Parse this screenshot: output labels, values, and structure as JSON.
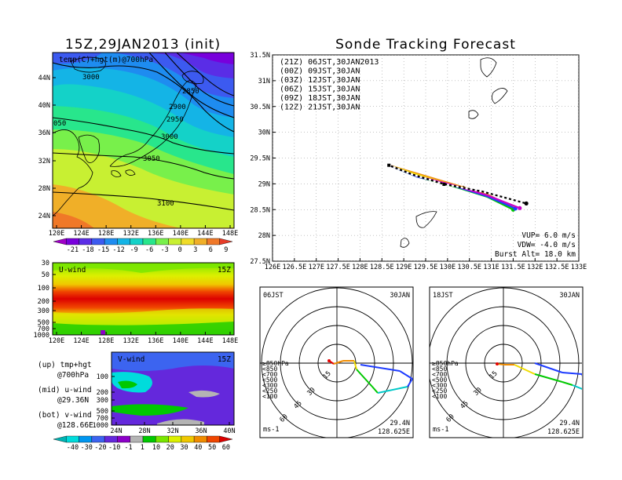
{
  "left_title": "15Z,29JAN2013 (init)",
  "right_title": "Sonde Tracking Forecast",
  "map_panel": {
    "label": "temp(C)+hgt(m)@700hPa",
    "lat_ticks": [
      "44N",
      "40N",
      "36N",
      "32N",
      "28N",
      "24N"
    ],
    "lon_ticks": [
      "120E",
      "124E",
      "128E",
      "132E",
      "136E",
      "140E",
      "144E",
      "148E"
    ],
    "contours": [
      "3000",
      "2850",
      "2900",
      "2950",
      "3000",
      "050",
      "3050",
      "3100"
    ]
  },
  "temp_colorbar": {
    "labels": [
      "-21",
      "-18",
      "-15",
      "-12",
      "-9",
      "-6",
      "-3",
      "0",
      "3",
      "6",
      "9"
    ],
    "colors": [
      "#a000c8",
      "#7800dc",
      "#5a2de6",
      "#3c5af0",
      "#1e8cf0",
      "#14b4e6",
      "#14d2c8",
      "#28e68c",
      "#78f04b",
      "#c8f032",
      "#f0dc28",
      "#f0af28",
      "#f07828",
      "#e63c28"
    ]
  },
  "u_panel": {
    "label": "U-wind",
    "time": "15Z",
    "p_ticks": [
      "30",
      "50",
      "100",
      "200",
      "300",
      "500",
      "700",
      "1000"
    ],
    "lon_ticks": [
      "120E",
      "124E",
      "128E",
      "132E",
      "136E",
      "140E",
      "144E",
      "148E"
    ]
  },
  "v_panel": {
    "label": "V-wind",
    "time": "15Z",
    "p_ticks": [
      "100",
      "200",
      "300",
      "500",
      "700",
      "1000"
    ],
    "lat_ticks": [
      "24N",
      "28N",
      "32N",
      "36N",
      "40N"
    ]
  },
  "legend_notes": [
    {
      "a": "(up) tmp+hgt",
      "b": "@700hPa"
    },
    {
      "a": "(mid) u-wind",
      "b": "@29.36N"
    },
    {
      "a": "(bot) v-wind",
      "b": "@128.66E"
    }
  ],
  "wind_colorbar": {
    "labels": [
      "-40",
      "-30",
      "-20",
      "-10",
      "-1",
      "1",
      "10",
      "20",
      "30",
      "40",
      "50",
      "60"
    ],
    "colors": [
      "#00b4b4",
      "#00dcdc",
      "#0096f0",
      "#3c64f0",
      "#6428dc",
      "#8c00c8",
      "#b4b4b4",
      "#00c800",
      "#78e600",
      "#dcf000",
      "#f0c800",
      "#f08c00",
      "#f04600",
      "#dc0000"
    ]
  },
  "track_panel": {
    "lat_ticks": [
      "31.5N",
      "31N",
      "30.5N",
      "30N",
      "29.5N",
      "29N",
      "28.5N",
      "28N",
      "27.5N"
    ],
    "lon_ticks": [
      "126E",
      "126.5E",
      "127E",
      "127.5E",
      "128E",
      "128.5E",
      "129E",
      "129.5E",
      "130E",
      "130.5E",
      "131E",
      "131.5E",
      "132E",
      "132.5E",
      "133E"
    ],
    "params": [
      "VUP= 6.0 m/s",
      "VDW= -4.0 m/s",
      "Burst Alt= 18.0 km"
    ]
  },
  "chart_data": {
    "type": "line",
    "title": "Sonde Tracking Forecast",
    "xlim": [
      126,
      133
    ],
    "ylim": [
      27.5,
      31.5
    ],
    "grid": true,
    "launch": [
      128.66,
      29.36
    ],
    "series": [
      {
        "name": "(21Z) 06JST,30JAN2013",
        "color": "#000000",
        "dashed_from": [
          129.9,
          29.0
        ],
        "points": [
          [
            128.66,
            29.36
          ],
          [
            129.2,
            29.18
          ],
          [
            129.9,
            29.0
          ],
          [
            130.8,
            28.85
          ],
          [
            131.8,
            28.62
          ]
        ]
      },
      {
        "name": "(00Z) 09JST,30JAN",
        "color": "#c800c8",
        "points": [
          [
            128.66,
            29.36
          ],
          [
            129.3,
            29.15
          ],
          [
            130.1,
            28.98
          ],
          [
            130.9,
            28.78
          ],
          [
            131.65,
            28.53
          ]
        ]
      },
      {
        "name": "(03Z) 12JST,30JAN",
        "color": "#1e3cff",
        "points": [
          [
            128.66,
            29.36
          ],
          [
            129.3,
            29.14
          ],
          [
            130.1,
            28.97
          ],
          [
            130.9,
            28.76
          ],
          [
            131.55,
            28.52
          ]
        ]
      },
      {
        "name": "(06Z) 15JST,30JAN",
        "color": "#00c800",
        "points": [
          [
            128.66,
            29.36
          ],
          [
            129.3,
            29.14
          ],
          [
            130.1,
            28.96
          ],
          [
            130.9,
            28.75
          ],
          [
            131.5,
            28.5
          ]
        ]
      },
      {
        "name": "(09Z) 18JST,30JAN",
        "color": "#f0dc00",
        "points": [
          [
            128.66,
            29.36
          ],
          [
            129.3,
            29.18
          ],
          [
            130.1,
            28.98
          ],
          [
            130.9,
            28.78
          ],
          [
            131.5,
            28.54
          ]
        ]
      },
      {
        "name": "(12Z) 21JST,30JAN",
        "color": "#f08c14",
        "points": [
          [
            128.66,
            29.36
          ],
          [
            129.3,
            29.2
          ],
          [
            130.1,
            29.0
          ],
          [
            130.9,
            28.8
          ],
          [
            131.45,
            28.56
          ]
        ]
      }
    ]
  },
  "hodographs": [
    {
      "time": "06JST",
      "date": "30JAN",
      "rings": [
        "15",
        "30",
        "45",
        "60"
      ],
      "plev": [
        "≥850hPa",
        "<850",
        "<700",
        "<500",
        "<300",
        "<250",
        "<100"
      ],
      "units": "ms-1",
      "lat": "29.4N",
      "lon": "128.625E"
    },
    {
      "time": "18JST",
      "date": "30JAN",
      "rings": [
        "15",
        "30",
        "45",
        "60"
      ],
      "plev": [
        "≥850hPa",
        "<850",
        "<700",
        "<500",
        "<300",
        "<250",
        "<100"
      ],
      "units": "ms-1",
      "lat": "29.4N",
      "lon": "128.625E"
    }
  ],
  "plev_colors": [
    "#e60000",
    "#f08c00",
    "#f0dc00",
    "#00c800",
    "#00c8c8",
    "#1e3cff",
    "#1e3cff"
  ]
}
